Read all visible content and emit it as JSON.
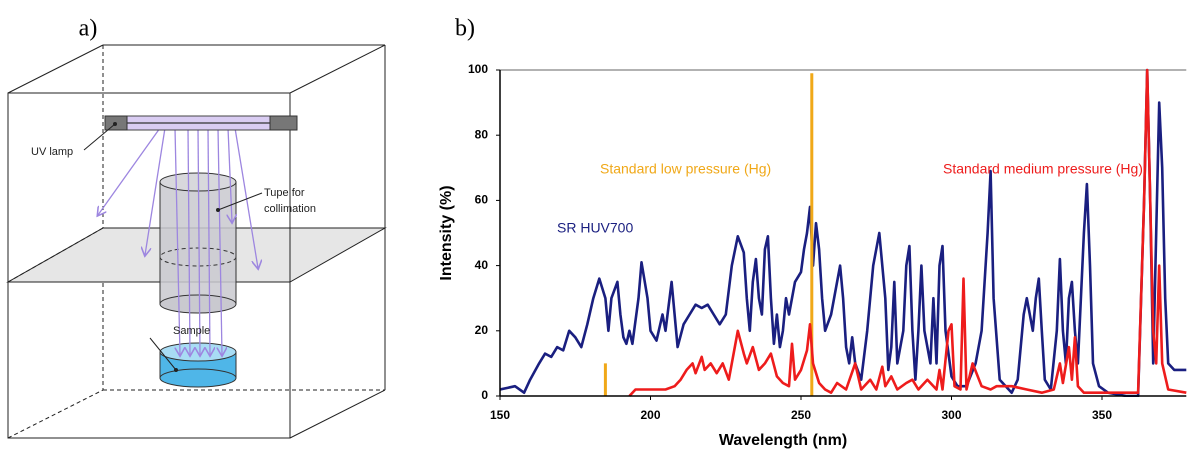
{
  "diagram": {
    "label": "a)",
    "lamp": "UV lamp",
    "tube": [
      "Tupe for",
      "collimation"
    ],
    "sample": "Sample"
  },
  "chart_data": {
    "type": "line",
    "panel_label": "b)",
    "x_label": "Wavelength (nm)",
    "y_label": "Intensity (%)",
    "xlim": [
      150,
      378
    ],
    "xticks": [
      150,
      200,
      250,
      300,
      350
    ],
    "ylim": [
      0,
      100
    ],
    "yticks": [
      0,
      20,
      40,
      60,
      80,
      100
    ],
    "grid": false,
    "series": [
      {
        "name": "SR HUV700",
        "color": "#1a1f80",
        "x": [
          150,
          155,
          158,
          160,
          163,
          165,
          167,
          169,
          171,
          173,
          175,
          177,
          179,
          181,
          183,
          185,
          186,
          187,
          189,
          190,
          191,
          192,
          193,
          194,
          196,
          197,
          199,
          200,
          202,
          204,
          205,
          207,
          208,
          209,
          211,
          213,
          215,
          217,
          219,
          221,
          223,
          225,
          227,
          229,
          231,
          232,
          233,
          234,
          235,
          236,
          237,
          238,
          239,
          240,
          241,
          242,
          243,
          244,
          245,
          246,
          248,
          250,
          251,
          252,
          253,
          254,
          255,
          256,
          257,
          258,
          260,
          262,
          263,
          264,
          265,
          266,
          267,
          268,
          270,
          272,
          274,
          276,
          278,
          279,
          280,
          281,
          282,
          284,
          285,
          286,
          287,
          288,
          289,
          290,
          291,
          292,
          293,
          294,
          295,
          296,
          297,
          298,
          300,
          302,
          305,
          308,
          310,
          312,
          313,
          314,
          316,
          318,
          320,
          322,
          324,
          325,
          326,
          327,
          328,
          329,
          330,
          331,
          333,
          335,
          336,
          337,
          338,
          339,
          340,
          341,
          342,
          343,
          344,
          345,
          346,
          347,
          349,
          352,
          358,
          362,
          364,
          365,
          366,
          367,
          368,
          369,
          370,
          371,
          372,
          374,
          376,
          378
        ],
        "values": [
          2,
          3,
          1,
          5,
          10,
          13,
          12,
          15,
          14,
          20,
          18,
          15,
          22,
          30,
          36,
          30,
          20,
          30,
          35,
          25,
          18,
          16,
          20,
          16,
          30,
          41,
          30,
          20,
          17,
          25,
          20,
          35,
          25,
          15,
          22,
          25,
          28,
          27,
          28,
          25,
          22,
          25,
          40,
          49,
          44,
          30,
          20,
          35,
          42,
          30,
          25,
          45,
          49,
          30,
          16,
          25,
          15,
          20,
          30,
          25,
          35,
          38,
          45,
          50,
          58,
          40,
          53,
          45,
          30,
          20,
          25,
          35,
          40,
          30,
          15,
          10,
          18,
          10,
          5,
          20,
          40,
          50,
          30,
          8,
          15,
          35,
          10,
          20,
          40,
          46,
          20,
          5,
          20,
          40,
          20,
          15,
          10,
          30,
          10,
          40,
          46,
          20,
          6,
          3,
          3,
          10,
          20,
          50,
          69,
          30,
          5,
          3,
          1,
          5,
          25,
          30,
          25,
          20,
          30,
          36,
          20,
          5,
          2,
          20,
          42,
          20,
          10,
          30,
          35,
          20,
          10,
          30,
          50,
          65,
          40,
          10,
          3,
          1,
          0,
          0,
          60,
          100,
          60,
          10,
          50,
          90,
          70,
          30,
          10,
          8,
          8,
          8
        ]
      },
      {
        "name": "Standard low pressure (Hg)",
        "color": "#f0a818",
        "x": [
          185,
          185,
          220,
          253.6,
          253.6
        ],
        "values": [
          0,
          10,
          null,
          0,
          99
        ]
      },
      {
        "name": "Standard medium pressure (Hg)",
        "color": "#ee1c1c",
        "x": [
          193,
          195,
          200,
          205,
          208,
          210,
          212,
          214,
          215,
          217,
          218,
          220,
          222,
          224,
          226,
          228,
          229,
          231,
          232,
          234,
          236,
          238,
          240,
          242,
          244,
          246,
          247,
          248,
          250,
          252,
          253,
          254,
          256,
          258,
          260,
          262,
          265,
          268,
          270,
          273,
          275,
          277,
          278,
          280,
          282,
          285,
          287,
          289,
          292,
          295,
          296,
          297,
          299,
          300,
          301,
          303,
          304,
          305,
          307,
          310,
          313,
          315,
          320,
          325,
          330,
          334,
          336,
          337,
          339,
          340,
          341,
          342,
          344,
          355,
          362,
          364,
          365,
          367,
          368,
          369,
          370,
          372,
          378
        ],
        "values": [
          0,
          2,
          2,
          2,
          3,
          5,
          8,
          10,
          7,
          12,
          8,
          10,
          7,
          10,
          5,
          15,
          20,
          13,
          10,
          15,
          8,
          10,
          13,
          6,
          4,
          3,
          16,
          5,
          8,
          14,
          22,
          10,
          4,
          2,
          1,
          4,
          2,
          10,
          2,
          5,
          2,
          9,
          3,
          6,
          2,
          4,
          5,
          2,
          5,
          2,
          8,
          2,
          20,
          22,
          3,
          2,
          36,
          2,
          10,
          3,
          2,
          3,
          3,
          2,
          1,
          2,
          10,
          4,
          15,
          5,
          18,
          3,
          1,
          1,
          1,
          60,
          100,
          20,
          10,
          40,
          10,
          2,
          1
        ]
      }
    ]
  }
}
